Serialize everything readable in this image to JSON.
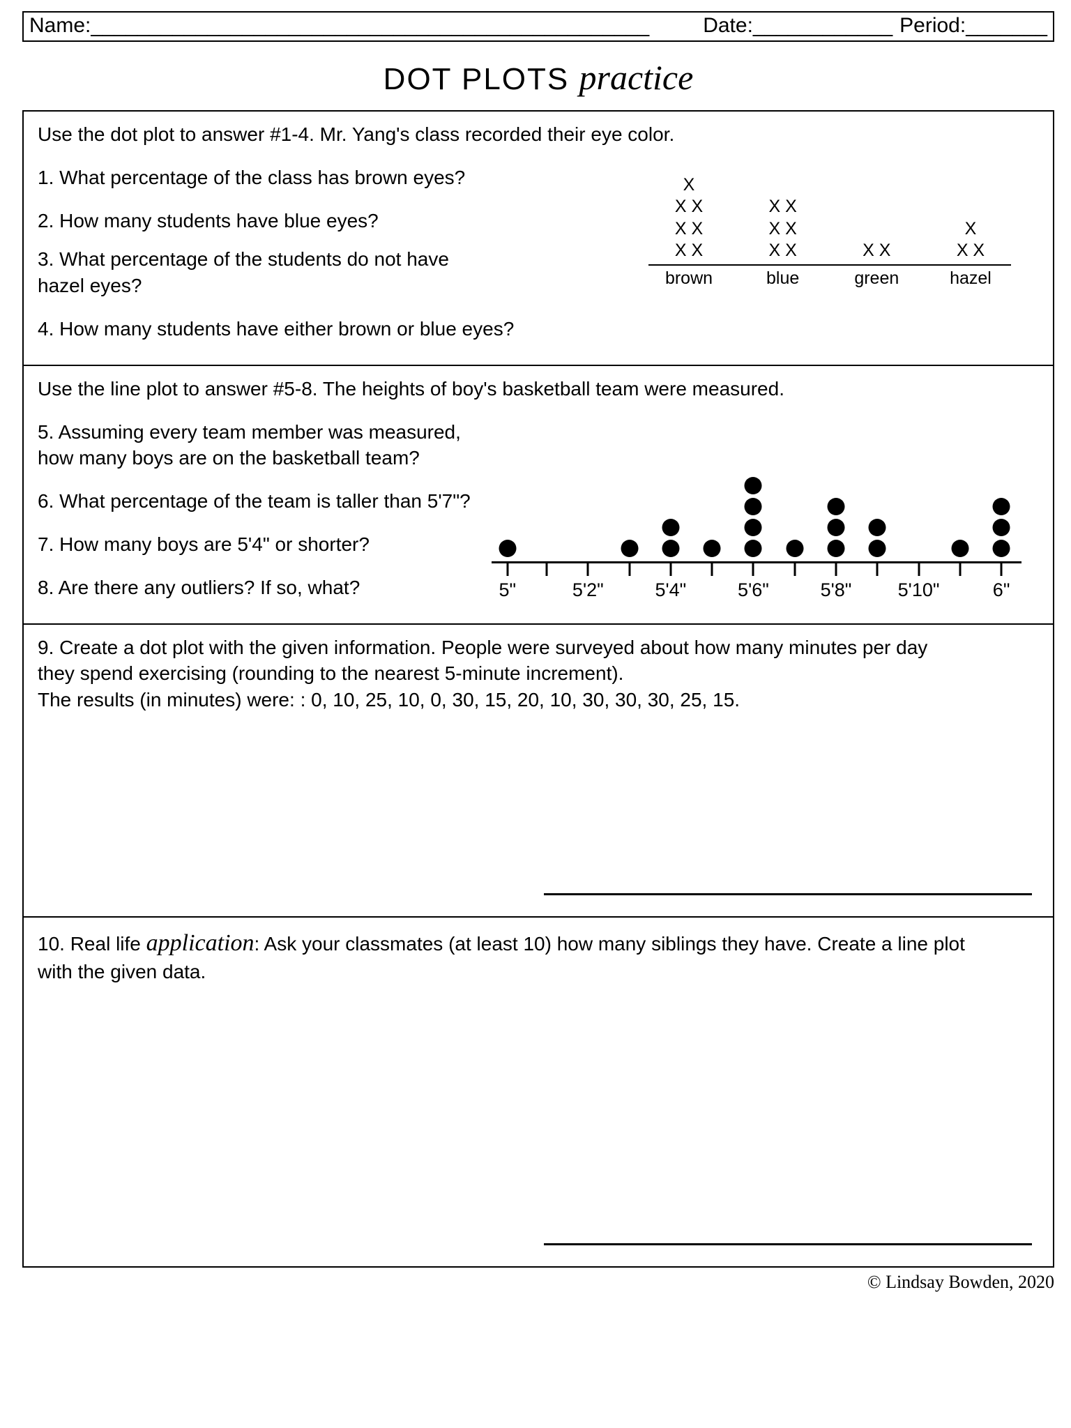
{
  "header": {
    "name_label": "Name:",
    "name_blank": "________________________________________________",
    "date_label": "Date:",
    "date_blank": "____________",
    "period_label": "Period:",
    "period_blank": "_______"
  },
  "title": {
    "main": "DOT PLOTS",
    "script": "practice"
  },
  "section1": {
    "intro": "Use the dot plot to answer #1-4. Mr. Yang's class recorded their eye color.",
    "q1": "1. What percentage of the class has brown eyes?",
    "q2": "2. How many students have blue eyes?",
    "q3a": "3. What percentage of the students do not have",
    "q3b": "hazel eyes?",
    "q4": "4. How many students have either brown or blue eyes?",
    "chart": {
      "type": "dot-plot-x",
      "mark": "X",
      "categories": [
        "brown",
        "blue",
        "green",
        "hazel"
      ],
      "counts": [
        7,
        6,
        2,
        3
      ],
      "columns": [
        [
          "X X",
          "X X",
          "X X",
          "X"
        ],
        [
          "X X",
          "X X",
          "X X"
        ],
        [
          "X X"
        ],
        [
          "X X",
          "X"
        ]
      ],
      "text_color": "#000000",
      "axis_color": "#000000",
      "font_size": 25
    }
  },
  "section2": {
    "intro": "Use the line plot to answer #5-8. The heights of boy's basketball team were measured.",
    "q5a": "5. Assuming every team member was measured,",
    "q5b": "how many boys are on the basketball team?",
    "q6": "6. What percentage of the team is taller than 5'7\"?",
    "q7": "7. How many boys are 5'4\" or shorter?",
    "q8": "8. Are there any outliers? If so, what?",
    "chart": {
      "type": "line-plot-dots",
      "ticks_pct": [
        3,
        10.4,
        18.2,
        26,
        33.8,
        41.6,
        49.4,
        57.2,
        65,
        72.8,
        80.6,
        88.4,
        96.2
      ],
      "labels": [
        {
          "text": "5\"",
          "pct": 3
        },
        {
          "text": "5'2\"",
          "pct": 18.2
        },
        {
          "text": "5'4\"",
          "pct": 33.8
        },
        {
          "text": "5'6\"",
          "pct": 49.4
        },
        {
          "text": "5'8\"",
          "pct": 65
        },
        {
          "text": "5'10\"",
          "pct": 80.6
        },
        {
          "text": "6\"",
          "pct": 96.2
        }
      ],
      "stacks": [
        {
          "pct": 3,
          "count": 1
        },
        {
          "pct": 26,
          "count": 1
        },
        {
          "pct": 33.8,
          "count": 2
        },
        {
          "pct": 41.6,
          "count": 1
        },
        {
          "pct": 49.4,
          "count": 4
        },
        {
          "pct": 57.2,
          "count": 1
        },
        {
          "pct": 65,
          "count": 3
        },
        {
          "pct": 72.8,
          "count": 2
        },
        {
          "pct": 88.4,
          "count": 1
        },
        {
          "pct": 96.2,
          "count": 3
        }
      ],
      "dot_size": 25,
      "dot_vgap": 30,
      "dot_color": "#000000",
      "axis_color": "#000000"
    }
  },
  "section3": {
    "line1": "9. Create a dot plot with the given information. People were surveyed about how many minutes per day",
    "line2": "they spend exercising (rounding to the nearest 5-minute increment).",
    "line3": "The results (in minutes) were: : 0, 10, 25, 10, 0, 30, 15, 20, 10, 30, 30, 30, 25, 15."
  },
  "section4": {
    "prefix": "10. Real life ",
    "script": "application",
    "suffix": ": Ask your classmates (at least 10) how many siblings they have. Create a line plot",
    "line2": "with the given data."
  },
  "copyright": "© Lindsay Bowden, 2020",
  "section_heights": {
    "s1": 350,
    "s2": 370,
    "s3": 420,
    "s4": 500
  }
}
